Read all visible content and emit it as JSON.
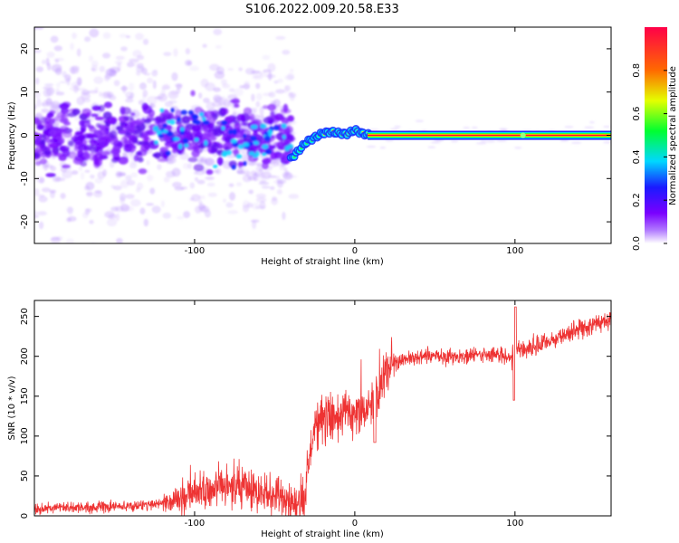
{
  "title": "S106.2022.009.20.58.E33",
  "chart_data": [
    {
      "type": "heatmap",
      "xlabel": "Height of straight line (km)",
      "ylabel": "Frequency (Hz)",
      "xlim": [
        -200,
        160
      ],
      "ylim": [
        -25,
        25
      ],
      "xticks": [
        -100,
        0,
        100
      ],
      "yticks": [
        -20,
        -10,
        0,
        10,
        20
      ],
      "colorbar": {
        "label": "Normalized spectral amplitude",
        "range": [
          0,
          1
        ],
        "ticks": [
          "0.0",
          "0.2",
          "0.4",
          "0.6",
          "0.8"
        ],
        "colormap": [
          "#ffffff",
          "#8a00ff",
          "#1414ff",
          "#00e6ff",
          "#00ff3c",
          "#e6ff00",
          "#ff6000",
          "#ff0044"
        ]
      },
      "trace": {
        "x": [
          -40,
          -35,
          -30,
          -25,
          -20,
          -15,
          -10,
          -5,
          0,
          5,
          10,
          50,
          100,
          160
        ],
        "y": [
          -5.5,
          -3.5,
          -1.5,
          -0.5,
          0.5,
          0.8,
          0.5,
          0.3,
          1.2,
          0.4,
          0.0,
          0.0,
          0.0,
          0.0
        ]
      }
    },
    {
      "type": "line",
      "xlabel": "Height of straight line (km)",
      "ylabel": "SNR (10 * v/v)",
      "xlim": [
        -200,
        160
      ],
      "ylim": [
        0,
        270
      ],
      "xticks": [
        -100,
        0,
        100
      ],
      "yticks": [
        0,
        50,
        100,
        150,
        200,
        250
      ],
      "color": "#ee3333",
      "series": [
        {
          "x": [
            -200,
            -180,
            -160,
            -140,
            -120,
            -110,
            -100,
            -90,
            -80,
            -70,
            -60,
            -50,
            -40,
            -32,
            -25,
            -20,
            -15,
            -10,
            -5,
            0,
            5,
            10,
            15,
            20,
            25,
            30,
            40,
            50,
            60,
            70,
            80,
            90,
            98,
            100,
            102,
            110,
            120,
            130,
            140,
            150,
            160
          ],
          "values": [
            9,
            10,
            11,
            12,
            16,
            22,
            28,
            32,
            34,
            34,
            30,
            24,
            18,
            14,
            112,
            120,
            122,
            126,
            132,
            130,
            126,
            136,
            160,
            182,
            192,
            196,
            198,
            200,
            200,
            200,
            202,
            202,
            200,
            208,
            208,
            210,
            218,
            226,
            234,
            240,
            248
          ]
        }
      ]
    }
  ]
}
